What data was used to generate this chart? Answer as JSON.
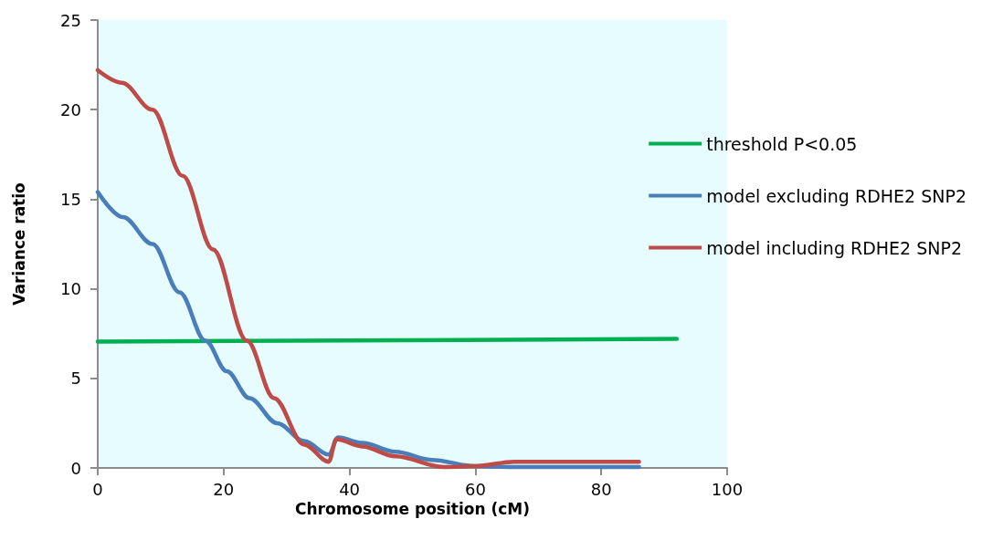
{
  "chart_data": {
    "type": "line",
    "xlabel": "Chromosome position (cM)",
    "ylabel": "Variance ratio",
    "xlim": [
      0,
      100
    ],
    "xticks": [
      0,
      20,
      40,
      60,
      80,
      100
    ],
    "ylim": [
      0,
      25
    ],
    "yticks": [
      0,
      5,
      10,
      15,
      20,
      25
    ],
    "grid": false,
    "legend": "right",
    "marker": "none",
    "line_style": "solid",
    "series": [
      {
        "name": "threshold P<0.05",
        "color": "#00b050",
        "x": [
          0,
          92
        ],
        "values": [
          7.05,
          7.2
        ]
      },
      {
        "name": "model excluding RDHE2 SNP2",
        "color": "#4a7ebb",
        "x": [
          0,
          4,
          8.7,
          13,
          17.1,
          20.5,
          24.1,
          28.5,
          32.8,
          36.7,
          38.2,
          42,
          47.3,
          53,
          60,
          66,
          76,
          86
        ],
        "values": [
          15.4,
          14.0,
          12.5,
          9.8,
          7.1,
          5.4,
          3.9,
          2.5,
          1.5,
          0.75,
          1.7,
          1.4,
          0.9,
          0.45,
          0.1,
          0.05,
          0.05,
          0.05
        ]
      },
      {
        "name": "model including RDHE2 SNP2",
        "color": "#be4b48",
        "x": [
          0,
          3.8,
          8.7,
          13.5,
          18.3,
          23.7,
          28,
          32.8,
          36.7,
          37.9,
          42,
          47.3,
          55,
          60,
          66.2,
          76,
          86
        ],
        "values": [
          22.2,
          21.5,
          20.0,
          16.3,
          12.2,
          7.1,
          3.9,
          1.3,
          0.35,
          1.6,
          1.2,
          0.65,
          0.05,
          0.1,
          0.35,
          0.35,
          0.35
        ]
      }
    ]
  }
}
